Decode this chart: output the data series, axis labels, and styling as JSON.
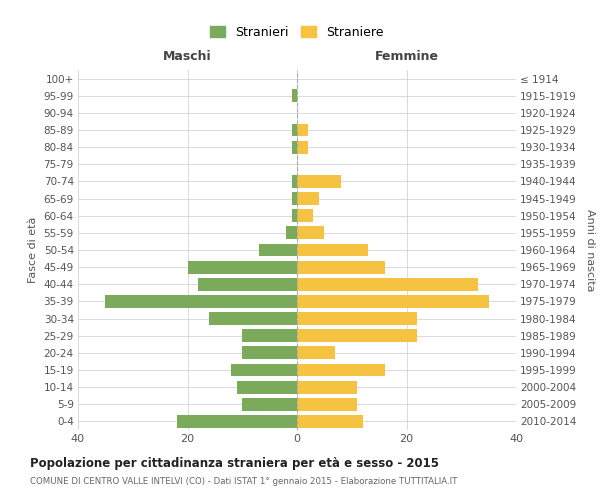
{
  "age_groups": [
    "0-4",
    "5-9",
    "10-14",
    "15-19",
    "20-24",
    "25-29",
    "30-34",
    "35-39",
    "40-44",
    "45-49",
    "50-54",
    "55-59",
    "60-64",
    "65-69",
    "70-74",
    "75-79",
    "80-84",
    "85-89",
    "90-94",
    "95-99",
    "100+"
  ],
  "birth_years": [
    "2010-2014",
    "2005-2009",
    "2000-2004",
    "1995-1999",
    "1990-1994",
    "1985-1989",
    "1980-1984",
    "1975-1979",
    "1970-1974",
    "1965-1969",
    "1960-1964",
    "1955-1959",
    "1950-1954",
    "1945-1949",
    "1940-1944",
    "1935-1939",
    "1930-1934",
    "1925-1929",
    "1920-1924",
    "1915-1919",
    "≤ 1914"
  ],
  "maschi": [
    22,
    10,
    11,
    12,
    10,
    10,
    16,
    35,
    18,
    20,
    7,
    2,
    1,
    1,
    1,
    0,
    1,
    1,
    0,
    1,
    0
  ],
  "femmine": [
    12,
    11,
    11,
    16,
    7,
    22,
    22,
    35,
    33,
    16,
    13,
    5,
    3,
    4,
    8,
    0,
    2,
    2,
    0,
    0,
    0
  ],
  "color_maschi": "#7aaa5a",
  "color_femmine": "#f5c242",
  "background_color": "#ffffff",
  "grid_color": "#cccccc",
  "title": "Popolazione per cittadinanza straniera per età e sesso - 2015",
  "subtitle": "COMUNE DI CENTRO VALLE INTELVI (CO) - Dati ISTAT 1° gennaio 2015 - Elaborazione TUTTITALIA.IT",
  "xlabel_left": "Maschi",
  "xlabel_right": "Femmine",
  "ylabel_left": "Fasce di età",
  "ylabel_right": "Anni di nascita",
  "legend_stranieri": "Stranieri",
  "legend_straniere": "Straniere",
  "xlim": 40,
  "bar_height": 0.75
}
